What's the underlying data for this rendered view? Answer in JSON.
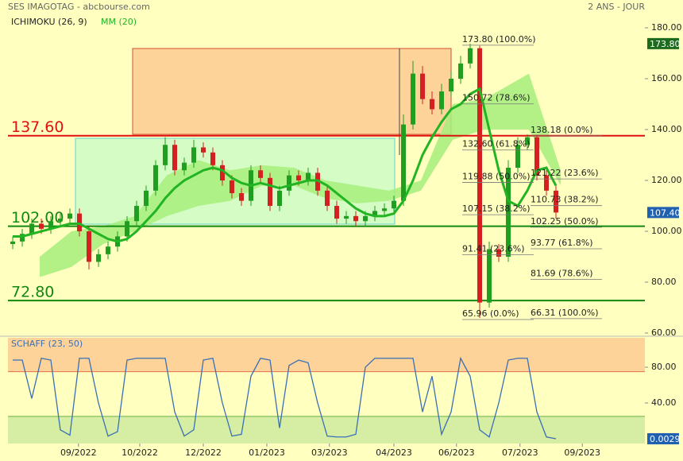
{
  "chart_data": [
    {
      "type": "candlestick",
      "title": "SES IMAGOTAG - abcbourse.com",
      "subtitle": "2 ANS - JOUR",
      "x": [
        0.75,
        2.25,
        3.75,
        5.25,
        6.75,
        8.25,
        9.75,
        11.25,
        12.75,
        14.25,
        15.75,
        17.25,
        18.75,
        20.25,
        21.75,
        23.25,
        24.75,
        26.25,
        27.75,
        29.25,
        30.75,
        32.25,
        33.75,
        35.25,
        36.75,
        38.25,
        39.75,
        41.25,
        42.75,
        44.25,
        45.75,
        47.25,
        48.75,
        50.25,
        51.75,
        53.25,
        54.75,
        56.25,
        57.75,
        59.25,
        60.75,
        62.25,
        63.75,
        65.25,
        66.75,
        68.25,
        69.75,
        71.25,
        72.75,
        74.25,
        75.75,
        77.25,
        78.75,
        80.25,
        81.75,
        83.25,
        84.75,
        86.25
      ],
      "open": [
        95,
        96,
        99,
        103,
        101,
        104,
        105,
        107,
        100,
        88,
        91,
        94,
        98,
        104,
        110,
        116,
        126,
        134,
        124,
        127,
        133,
        131,
        126,
        120,
        115,
        112,
        124,
        121,
        110,
        116,
        122,
        120,
        123,
        116,
        110,
        105,
        106,
        104,
        106,
        108,
        109,
        112,
        142,
        162,
        152,
        148,
        155,
        160,
        166,
        172,
        72,
        93,
        90,
        125,
        134,
        137,
        122,
        116
      ],
      "high": [
        98,
        101,
        105,
        105,
        106,
        107,
        109,
        109,
        102,
        93,
        96,
        100,
        106,
        112,
        118,
        128,
        137,
        136,
        129,
        136,
        135,
        133,
        128,
        122,
        117,
        126,
        126,
        123,
        118,
        124,
        124,
        125,
        125,
        118,
        112,
        108,
        108,
        108,
        110,
        111,
        114,
        146,
        167,
        165,
        155,
        158,
        163,
        169,
        173.8,
        173,
        96,
        95,
        128,
        137,
        138.18,
        138,
        124,
        118
      ],
      "low": [
        93,
        94,
        97,
        99,
        99,
        102,
        103,
        98,
        85,
        86,
        89,
        92,
        96,
        102,
        108,
        114,
        124,
        122,
        122,
        125,
        129,
        124,
        118,
        113,
        110,
        110,
        119,
        108,
        108,
        114,
        118,
        118,
        114,
        108,
        103,
        103,
        102,
        102,
        104,
        106,
        107,
        110,
        140,
        150,
        146,
        146,
        153,
        158,
        164,
        65.96,
        70,
        88,
        88,
        123,
        132,
        120,
        114,
        105
      ],
      "close": [
        96,
        99,
        103,
        101,
        104,
        105,
        107,
        100,
        88,
        91,
        94,
        98,
        104,
        110,
        116,
        126,
        134,
        124,
        127,
        133,
        131,
        126,
        120,
        115,
        112,
        124,
        121,
        110,
        116,
        122,
        120,
        123,
        116,
        110,
        105,
        106,
        104,
        106,
        108,
        109,
        112,
        142,
        162,
        152,
        148,
        155,
        160,
        166,
        172,
        72,
        93,
        90,
        125,
        134,
        137,
        122,
        116,
        107.4
      ],
      "up_color": "#1f9e1f",
      "down_color": "#d42020",
      "series": [
        {
          "name": "MM (20)",
          "color": "#22b422",
          "values": [
            98,
            98,
            99,
            100,
            101,
            102,
            103,
            103,
            101,
            99,
            97,
            96,
            97,
            100,
            104,
            108,
            113,
            117,
            120,
            122,
            124,
            125,
            124,
            121,
            119,
            118,
            119,
            118,
            117,
            118,
            119,
            120,
            120,
            118,
            115,
            112,
            109,
            107,
            106,
            106,
            107,
            112,
            120,
            130,
            137,
            143,
            148,
            150,
            154,
            156,
            140,
            124,
            112,
            110,
            116,
            124,
            125,
            118
          ]
        }
      ],
      "cloud": {
        "name": "ICHIMOKU (26, 9)",
        "color": "#a6ee7c",
        "x": [
          5,
          10,
          15,
          20,
          25,
          30,
          35,
          40,
          45,
          50,
          55,
          60,
          65,
          70,
          75,
          82,
          87
        ],
        "upper": [
          90,
          100,
          102,
          106,
          122,
          128,
          124,
          126,
          125,
          120,
          118,
          116,
          120,
          150,
          152,
          162,
          124
        ],
        "lower": [
          82,
          86,
          95,
          100,
          106,
          110,
          112,
          118,
          118,
          113,
          111,
          112,
          116,
          136,
          140,
          140,
          118
        ]
      },
      "xlim": [
        0,
        100
      ],
      "ylim": [
        59.7,
        184.7
      ],
      "yticks": [
        {
          "value": 60,
          "label": "60.00"
        },
        {
          "value": 80,
          "label": "80.00"
        },
        {
          "value": 100,
          "label": "100.00"
        },
        {
          "value": 120,
          "label": "120.00"
        },
        {
          "value": 140,
          "label": "140.00"
        },
        {
          "value": 160,
          "label": "160.00"
        },
        {
          "value": 180,
          "label": "180.00"
        }
      ],
      "levels": [
        {
          "value": 137.6,
          "label": "137.60",
          "color": "#e01010"
        },
        {
          "value": 102,
          "label": "102.00",
          "color": "#118811"
        },
        {
          "value": 72.8,
          "label": "72.80",
          "color": "#118811"
        }
      ],
      "fibonacci": [
        {
          "levels": [
            {
              "value": 173.8,
              "label": "173.80 (100.0%)"
            },
            {
              "value": 150.72,
              "label": "150.72 (78.6%)"
            },
            {
              "value": 132.6,
              "label": "132.60 (61.8%)"
            },
            {
              "value": 119.88,
              "label": "119.88 (50.0%)"
            },
            {
              "value": 107.15,
              "label": "107.15 (38.2%)"
            },
            {
              "value": 91.41,
              "label": "91.41 (23.6%)"
            },
            {
              "value": 65.96,
              "label": "65.96 (0.0%)"
            }
          ]
        },
        {
          "levels": [
            {
              "value": 138.18,
              "label": "138.18 (0.0%)"
            },
            {
              "value": 121.22,
              "label": "121.22 (23.6%)"
            },
            {
              "value": 110.73,
              "label": "110.73 (38.2%)"
            },
            {
              "value": 102.25,
              "label": "102.25 (50.0%)"
            },
            {
              "value": 93.77,
              "label": "93.77 (61.8%)"
            },
            {
              "value": 81.69,
              "label": "81.69 (78.6%)"
            },
            {
              "value": 66.31,
              "label": "66.31 (100.0%)"
            }
          ]
        }
      ],
      "high_tag": {
        "value": 173.8,
        "label": "173.80",
        "color": "#1d6b1d"
      },
      "last_price": {
        "value": 107.4,
        "label": "107.40",
        "color": "#2060b0"
      }
    },
    {
      "type": "line",
      "title": "SCHAFF (23, 50)",
      "color": "#3b6fb4",
      "x": [
        0.75,
        2.25,
        3.75,
        5.25,
        6.75,
        8.25,
        9.75,
        11.25,
        12.75,
        14.25,
        15.75,
        17.25,
        18.75,
        20.25,
        21.75,
        23.25,
        24.75,
        26.25,
        27.75,
        29.25,
        30.75,
        32.25,
        33.75,
        35.25,
        36.75,
        38.25,
        39.75,
        41.25,
        42.75,
        44.25,
        45.75,
        47.25,
        48.75,
        50.25,
        51.75,
        53.25,
        54.75,
        56.25,
        57.75,
        59.25,
        60.75,
        62.25,
        63.75,
        65.25,
        66.75,
        68.25,
        69.75,
        71.25,
        72.75,
        74.25,
        75.75,
        77.25,
        78.75,
        80.25,
        81.75,
        83.25,
        84.75,
        86.25
      ],
      "values": [
        88,
        88,
        45,
        90,
        88,
        10,
        4,
        90,
        90,
        40,
        3,
        8,
        88,
        90,
        90,
        90,
        90,
        30,
        3,
        10,
        88,
        90,
        40,
        3,
        5,
        70,
        90,
        88,
        12,
        82,
        88,
        85,
        40,
        3,
        2,
        2,
        5,
        80,
        90,
        90,
        90,
        90,
        90,
        30,
        70,
        5,
        30,
        90,
        70,
        10,
        2,
        40,
        88,
        90,
        90,
        30,
        2,
        0.0029
      ],
      "upper_band": 75,
      "lower_band": 25,
      "xlim": [
        0,
        100
      ],
      "ylim": [
        -5.3,
        112.9
      ],
      "yticks": [
        {
          "value": 40,
          "label": "40.00"
        },
        {
          "value": 80,
          "label": "80.00"
        }
      ],
      "xticks": [
        {
          "value": 11.1,
          "label": "09/2022"
        },
        {
          "value": 20.75,
          "label": "10/2022"
        },
        {
          "value": 30.75,
          "label": "12/2022"
        },
        {
          "value": 40.75,
          "label": "01/2023"
        },
        {
          "value": 50.6,
          "label": "03/2023"
        },
        {
          "value": 60.75,
          "label": "04/2023"
        },
        {
          "value": 70.6,
          "label": "06/2023"
        },
        {
          "value": 80.6,
          "label": "07/2023"
        },
        {
          "value": 90.4,
          "label": "09/2023"
        }
      ],
      "last_value": 0.0029
    }
  ]
}
